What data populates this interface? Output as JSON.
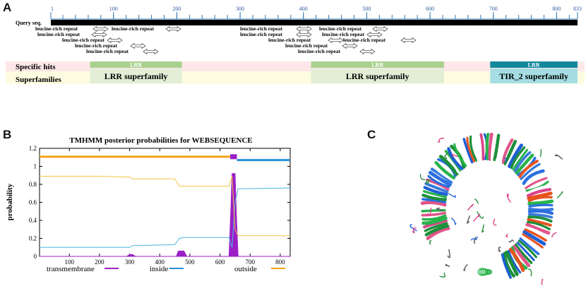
{
  "panel_a": {
    "label": "A",
    "query_label": "Query seq.",
    "ruler_ticks": [
      "1",
      "100",
      "200",
      "300",
      "400",
      "500",
      "600",
      "700",
      "800",
      "833"
    ],
    "repeat_label": "leucine-rich repeat",
    "track_labels": {
      "specific": "Specific hits",
      "superfamilies": "Superfamilies"
    },
    "domains": [
      {
        "hit": "LRR",
        "superfamily": "LRR superfamily",
        "start": 63,
        "end": 208,
        "color": "#a9d18e",
        "sf_color": "#e2eed6"
      },
      {
        "hit": "LRR",
        "superfamily": "LRR superfamily",
        "start": 412,
        "end": 622,
        "color": "#a9d18e",
        "sf_color": "#e2eed6"
      },
      {
        "hit": "LRR",
        "superfamily": "TIR_2 superfamily",
        "start": 695,
        "end": 833,
        "color": "#12889c",
        "sf_color": "#a5dde3"
      }
    ]
  },
  "panel_b": {
    "label": "B",
    "chart_data": {
      "type": "line",
      "title": "TMHMM posterior probabilities for WEBSEQUENCE",
      "xlabel": "",
      "ylabel": "probability",
      "xlim": [
        1,
        833
      ],
      "ylim": [
        0,
        1.2
      ],
      "xticks": [
        "100",
        "200",
        "300",
        "400",
        "500",
        "600",
        "700",
        "800"
      ],
      "yticks": [
        "0",
        "0.2",
        "0.4",
        "0.6",
        "0.8",
        "1",
        "1.2"
      ],
      "series": [
        {
          "name": "transmembrane",
          "color": "#9b1fc7",
          "points": [
            [
              1,
              0
            ],
            [
              290,
              0
            ],
            [
              300,
              0.02
            ],
            [
              310,
              0.02
            ],
            [
              320,
              0
            ],
            [
              455,
              0
            ],
            [
              462,
              0.06
            ],
            [
              480,
              0.06
            ],
            [
              490,
              0
            ],
            [
              630,
              0
            ],
            [
              636,
              0.5
            ],
            [
              640,
              0.92
            ],
            [
              650,
              0.92
            ],
            [
              655,
              0.4
            ],
            [
              660,
              0
            ],
            [
              833,
              0
            ]
          ]
        },
        {
          "name": "inside",
          "color": "#4bb8de",
          "points": [
            [
              1,
              0.1
            ],
            [
              200,
              0.1
            ],
            [
              300,
              0.1
            ],
            [
              310,
              0.12
            ],
            [
              450,
              0.13
            ],
            [
              465,
              0.2
            ],
            [
              480,
              0.21
            ],
            [
              630,
              0.21
            ],
            [
              640,
              0.1
            ],
            [
              650,
              0.6
            ],
            [
              660,
              0.75
            ],
            [
              833,
              0.76
            ]
          ]
        },
        {
          "name": "outside",
          "color": "#f3c244",
          "points": [
            [
              1,
              0.89
            ],
            [
              200,
              0.89
            ],
            [
              300,
              0.88
            ],
            [
              310,
              0.86
            ],
            [
              450,
              0.86
            ],
            [
              465,
              0.78
            ],
            [
              630,
              0.78
            ],
            [
              640,
              0.89
            ],
            [
              650,
              0.3
            ],
            [
              660,
              0.23
            ],
            [
              833,
              0.23
            ]
          ]
        }
      ],
      "topology": [
        {
          "name": "outside",
          "start": 1,
          "end": 634,
          "color": "#f0a418"
        },
        {
          "name": "transmembrane",
          "start": 634,
          "end": 656,
          "color": "#9b1fc7"
        },
        {
          "name": "inside",
          "start": 656,
          "end": 833,
          "color": "#2a8fd6"
        }
      ]
    }
  },
  "panel_c": {
    "label": "C"
  }
}
